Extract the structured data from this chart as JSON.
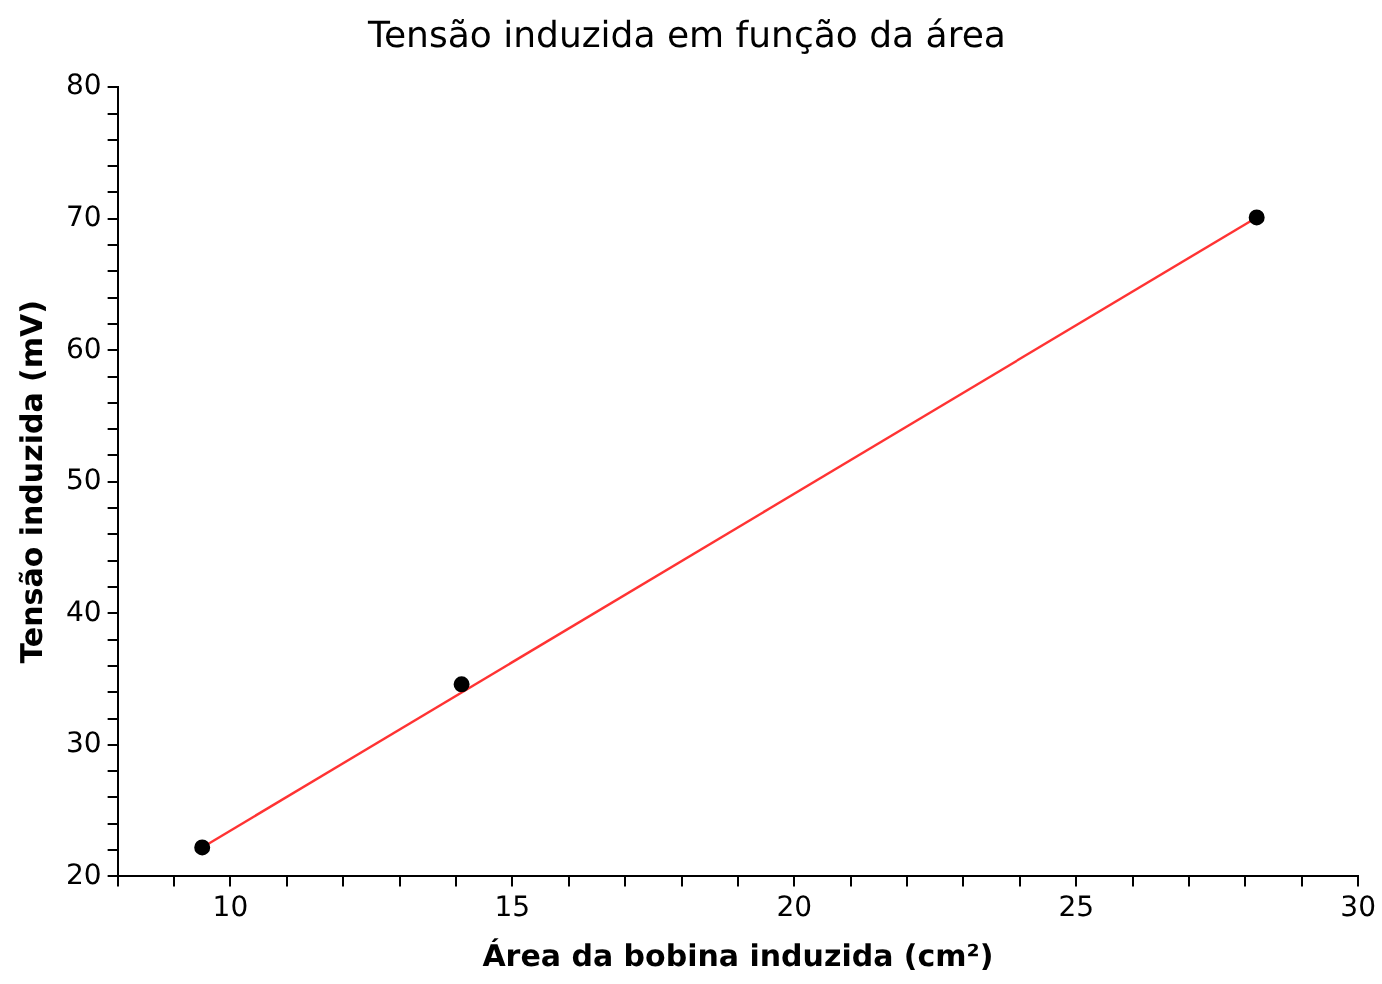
{
  "chart_data": {
    "type": "scatter",
    "title": "Tensão induzida em função da área",
    "xlabel": "Área da bobina induzida (cm²)",
    "ylabel": "Tensão induzida (mV)",
    "xlim": [
      8,
      30
    ],
    "xticks": [
      {
        "value": 8,
        "label": null
      },
      {
        "value": 9,
        "label": null
      },
      10,
      {
        "value": 11,
        "label": null
      },
      {
        "value": 12,
        "label": null
      },
      {
        "value": 13,
        "label": null
      },
      {
        "value": 14,
        "label": null
      },
      15,
      {
        "value": 16,
        "label": null
      },
      {
        "value": 17,
        "label": null
      },
      {
        "value": 18,
        "label": null
      },
      {
        "value": 19,
        "label": null
      },
      20,
      {
        "value": 21,
        "label": null
      },
      {
        "value": 22,
        "label": null
      },
      {
        "value": 23,
        "label": null
      },
      {
        "value": 24,
        "label": null
      },
      25,
      {
        "value": 26,
        "label": null
      },
      {
        "value": 27,
        "label": null
      },
      {
        "value": 28,
        "label": null
      },
      {
        "value": 29,
        "label": null
      },
      30
    ],
    "ylim": [
      20,
      80
    ],
    "yticks": [
      20,
      {
        "value": 22,
        "label": null
      },
      {
        "value": 24,
        "label": null
      },
      {
        "value": 26,
        "label": null
      },
      {
        "value": 28,
        "label": null
      },
      30,
      {
        "value": 32,
        "label": null
      },
      {
        "value": 34,
        "label": null
      },
      {
        "value": 36,
        "label": null
      },
      {
        "value": 38,
        "label": null
      },
      40,
      {
        "value": 42,
        "label": null
      },
      {
        "value": 44,
        "label": null
      },
      {
        "value": 46,
        "label": null
      },
      {
        "value": 48,
        "label": null
      },
      50,
      {
        "value": 52,
        "label": null
      },
      {
        "value": 54,
        "label": null
      },
      {
        "value": 56,
        "label": null
      },
      {
        "value": 58,
        "label": null
      },
      60,
      {
        "value": 62,
        "label": null
      },
      {
        "value": 64,
        "label": null
      },
      {
        "value": 66,
        "label": null
      },
      {
        "value": 68,
        "label": null
      },
      70,
      {
        "value": 72,
        "label": null
      },
      {
        "value": 74,
        "label": null
      },
      {
        "value": 76,
        "label": null
      },
      {
        "value": 78,
        "label": null
      },
      80
    ],
    "grid": false,
    "legend": false,
    "marker": "circle",
    "series": [
      {
        "type": "line",
        "color": "#ff3333",
        "x": [
          9.5,
          28.2
        ],
        "values": [
          22.2,
          70.1
        ],
        "marker": "none"
      },
      {
        "color": "#000000",
        "x": [
          9.5,
          14.1,
          28.2
        ],
        "values": [
          22.2,
          34.6,
          70.1
        ]
      }
    ]
  }
}
